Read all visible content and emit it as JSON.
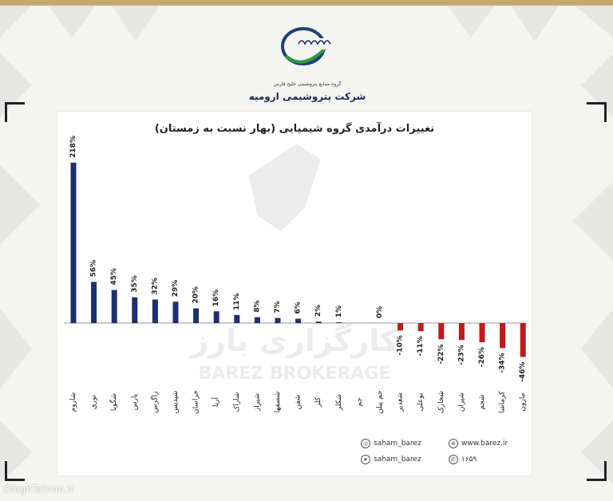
{
  "header": {
    "logo_caption": "گروه صنایع پتروشیمی خلیج فارس",
    "company_name": "شرکت پتروشیمی ارومیه"
  },
  "footer": {
    "instagram_handle": "saham_barez",
    "website": "www.barez.ir",
    "telegram_handle": "saham_barez",
    "short_code": "۱۶۵۹"
  },
  "watermark": {
    "brokerage_en": "BAREZ BROKERAGE",
    "brokerage_fa": "کارگزاری بارز",
    "source_site": "OfoghTehran.ir"
  },
  "colors": {
    "positive_bar": "#1c2f6e",
    "negative_bar": "#c01a1a",
    "axis": "#999999",
    "label_text": "#222222"
  },
  "chart_data": {
    "type": "bar",
    "title": "تغییرات درآمدی گروه شیمیایی (بهار نسبت به زمستان)",
    "xlabel": "",
    "ylabel": "",
    "unit": "%",
    "categories": [
      "شاروم",
      "نوری",
      "شگویا",
      "پارس",
      "زاگرس",
      "شپدیس",
      "خراسان",
      "آریا",
      "شاراک",
      "شیراز",
      "شصفها",
      "شفن",
      "کلر",
      "شکلر",
      "جم",
      "جم پیلن",
      "شغدیر",
      "بوعلی",
      "شخارک",
      "شیران",
      "شجم",
      "کرماشا",
      "مارون"
    ],
    "values": [
      218,
      56,
      45,
      35,
      32,
      29,
      20,
      16,
      11,
      8,
      7,
      6,
      2,
      1,
      0,
      0,
      -10,
      -11,
      -22,
      -23,
      -26,
      -34,
      -46
    ],
    "value_labels": [
      "218%",
      "56%",
      "45%",
      "35%",
      "32%",
      "29%",
      "20%",
      "16%",
      "11%",
      "8%",
      "7%",
      "6%",
      "2%",
      "1%",
      "",
      "0%",
      "-10%",
      "-11%",
      "-22%",
      "-23%",
      "-26%",
      "-34%",
      "-46%"
    ],
    "ylim": [
      -50,
      220
    ],
    "grid": false,
    "legend": "none"
  }
}
